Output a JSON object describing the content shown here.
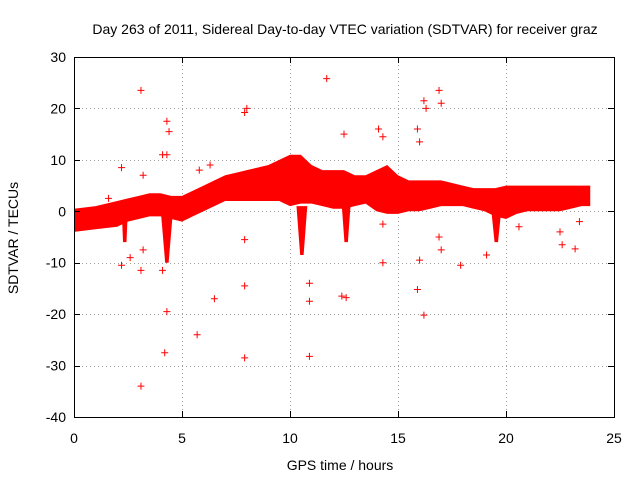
{
  "chart_data": {
    "type": "scatter",
    "title": "Day 263 of 2011, Sidereal Day-to-day VTEC variation (SDTVAR) for receiver graz",
    "xlabel": "GPS time / hours",
    "ylabel": "SDTVAR / TECUs",
    "xlim": [
      0,
      25
    ],
    "ylim": [
      -40,
      30
    ],
    "xticks": [
      0,
      5,
      10,
      15,
      20,
      25
    ],
    "yticks": [
      -40,
      -30,
      -20,
      -10,
      0,
      10,
      20,
      30
    ],
    "xtick_labels": [
      "0",
      "5",
      "10",
      "15",
      "20",
      "25"
    ],
    "ytick_labels": [
      "-40",
      "-30",
      "-20",
      "-10",
      "0",
      "10",
      "20",
      "30"
    ],
    "grid": true,
    "marker": "plus",
    "color": "#ff0000",
    "dense_band": {
      "x": [
        0,
        1,
        2,
        2.5,
        3,
        3.5,
        4,
        4.5,
        5,
        5.5,
        6,
        6.5,
        7,
        7.5,
        8,
        8.5,
        9,
        9.5,
        10,
        10.5,
        11,
        11.5,
        12,
        12.5,
        13,
        13.5,
        14,
        14.5,
        15,
        15.5,
        16,
        16.5,
        17,
        17.5,
        18,
        18.5,
        19,
        19.5,
        20,
        20.5,
        21,
        21.5,
        22,
        22.5,
        23,
        23.5,
        23.9
      ],
      "upper": [
        0.5,
        1,
        2,
        2.5,
        3,
        3.5,
        3.5,
        3,
        3,
        4,
        5,
        6,
        7,
        7.5,
        8,
        8.5,
        9,
        10,
        11,
        11,
        9,
        8,
        8,
        8,
        7,
        7,
        8,
        9,
        7,
        6,
        6,
        6,
        6,
        5.5,
        5,
        4.5,
        4.5,
        4.5,
        5,
        5,
        5,
        5,
        5,
        5,
        5,
        5,
        5
      ],
      "lower": [
        -4,
        -3.5,
        -3,
        -2,
        -1.5,
        -1,
        -1,
        -1.5,
        -2,
        -1,
        0,
        1,
        2,
        2,
        2,
        2,
        2,
        2,
        1,
        1.5,
        1.5,
        1,
        0.5,
        0.5,
        1,
        1.5,
        0,
        -0.5,
        -0.5,
        0,
        0,
        0.5,
        1,
        1,
        1,
        0.5,
        0,
        -1,
        -1.5,
        -0.5,
        0,
        0,
        0,
        0,
        0.5,
        1,
        1
      ]
    },
    "dips": [
      {
        "x0": 10.3,
        "x1": 10.8,
        "bottom": -8.5
      },
      {
        "x0": 12.4,
        "x1": 12.8,
        "bottom": -6
      },
      {
        "x0": 19.3,
        "x1": 19.8,
        "bottom": -6
      },
      {
        "x0": 4.0,
        "x1": 4.6,
        "bottom": -10
      },
      {
        "x0": 2.2,
        "x1": 2.5,
        "bottom": -6
      }
    ],
    "outliers": [
      {
        "x": 3.1,
        "y": 23.5
      },
      {
        "x": 4.3,
        "y": 17.5
      },
      {
        "x": 4.4,
        "y": 15.5
      },
      {
        "x": 4.1,
        "y": 11
      },
      {
        "x": 4.3,
        "y": 11
      },
      {
        "x": 7.9,
        "y": 19.2
      },
      {
        "x": 8.0,
        "y": 20
      },
      {
        "x": 11.7,
        "y": 25.8
      },
      {
        "x": 12.5,
        "y": 15
      },
      {
        "x": 14.1,
        "y": 16
      },
      {
        "x": 14.3,
        "y": 14.5
      },
      {
        "x": 16.2,
        "y": 21.5
      },
      {
        "x": 16.3,
        "y": 20
      },
      {
        "x": 15.9,
        "y": 16
      },
      {
        "x": 16.0,
        "y": 13.5
      },
      {
        "x": 16.9,
        "y": 23.5
      },
      {
        "x": 17.0,
        "y": 21
      },
      {
        "x": 2.2,
        "y": 8.5
      },
      {
        "x": 3.2,
        "y": 7
      },
      {
        "x": 3.2,
        "y": -7.5
      },
      {
        "x": 2.2,
        "y": -10.5
      },
      {
        "x": 2.6,
        "y": -9
      },
      {
        "x": 3.1,
        "y": -11.5
      },
      {
        "x": 4.1,
        "y": -11.5
      },
      {
        "x": 4.3,
        "y": -19.5
      },
      {
        "x": 4.2,
        "y": -27.5
      },
      {
        "x": 3.1,
        "y": -34
      },
      {
        "x": 5.7,
        "y": -24
      },
      {
        "x": 6.5,
        "y": -17
      },
      {
        "x": 7.9,
        "y": -14.5
      },
      {
        "x": 7.9,
        "y": -5.5
      },
      {
        "x": 7.9,
        "y": -28.5
      },
      {
        "x": 10.9,
        "y": -14
      },
      {
        "x": 10.9,
        "y": -17.5
      },
      {
        "x": 10.9,
        "y": -28.2
      },
      {
        "x": 12.4,
        "y": -16.5
      },
      {
        "x": 12.6,
        "y": -16.8
      },
      {
        "x": 14.3,
        "y": -10
      },
      {
        "x": 14.3,
        "y": -2.5
      },
      {
        "x": 15.9,
        "y": -15.2
      },
      {
        "x": 16.2,
        "y": -20.2
      },
      {
        "x": 16.0,
        "y": -9.5
      },
      {
        "x": 17.0,
        "y": -7.5
      },
      {
        "x": 16.9,
        "y": -5
      },
      {
        "x": 17.9,
        "y": -10.5
      },
      {
        "x": 19.1,
        "y": -8.5
      },
      {
        "x": 20.6,
        "y": -3
      },
      {
        "x": 22.5,
        "y": -4
      },
      {
        "x": 22.6,
        "y": -6.5
      },
      {
        "x": 23.2,
        "y": -7.3
      },
      {
        "x": 23.4,
        "y": -2
      },
      {
        "x": 1.6,
        "y": 2.5
      },
      {
        "x": 0.8,
        "y": -2.8
      },
      {
        "x": 5.8,
        "y": 8
      },
      {
        "x": 6.3,
        "y": 9
      }
    ]
  }
}
